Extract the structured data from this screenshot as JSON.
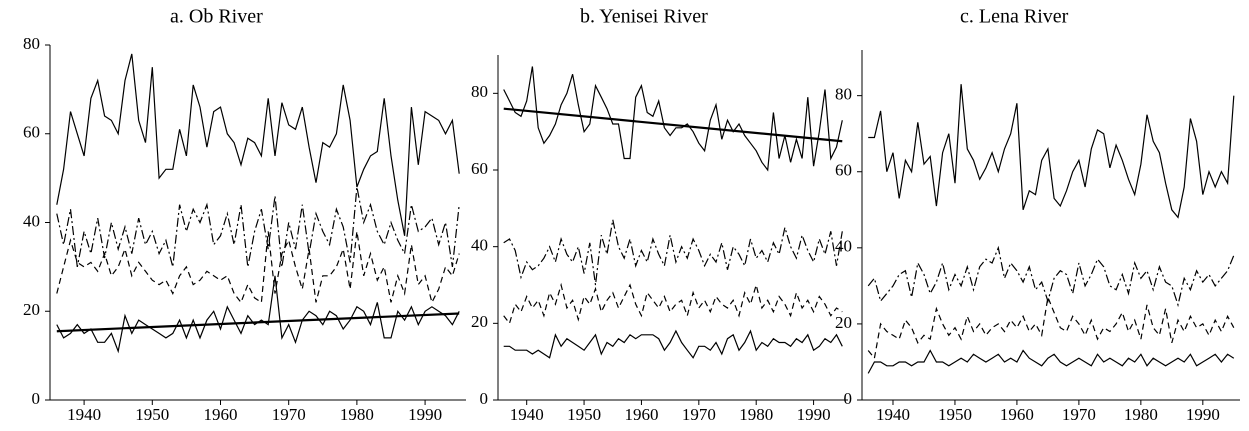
{
  "chart_data": [
    {
      "type": "line",
      "title": "a. Ob River",
      "x": [
        1936,
        1937,
        1938,
        1939,
        1940,
        1941,
        1942,
        1943,
        1944,
        1945,
        1946,
        1947,
        1948,
        1949,
        1950,
        1951,
        1952,
        1953,
        1954,
        1955,
        1956,
        1957,
        1958,
        1959,
        1960,
        1961,
        1962,
        1963,
        1964,
        1965,
        1966,
        1967,
        1968,
        1969,
        1970,
        1971,
        1972,
        1973,
        1974,
        1975,
        1976,
        1977,
        1978,
        1979,
        1980,
        1981,
        1982,
        1983,
        1984,
        1985,
        1986,
        1987,
        1988,
        1989,
        1990,
        1991,
        1992,
        1993,
        1994,
        1995
      ],
      "series": [
        {
          "style": "solid",
          "color": "#000",
          "values": [
            44,
            52,
            65,
            60,
            55,
            68,
            72,
            64,
            63,
            60,
            72,
            78,
            63,
            58,
            75,
            50,
            52,
            52,
            61,
            55,
            71,
            66,
            57,
            65,
            66,
            60,
            58,
            53,
            59,
            58,
            55,
            68,
            55,
            67,
            62,
            61,
            66,
            57,
            49,
            58,
            57,
            60,
            71,
            63,
            48,
            52,
            55,
            56,
            68,
            55,
            45,
            37,
            66,
            53,
            65,
            64,
            63,
            60,
            63,
            51
          ]
        },
        {
          "style": "dashdot",
          "color": "#000",
          "values": [
            42,
            35,
            43,
            30,
            38,
            33,
            41,
            32,
            40,
            34,
            39,
            33,
            41,
            35,
            38,
            33,
            36,
            30,
            44,
            38,
            43,
            40,
            44,
            35,
            37,
            42,
            35,
            44,
            30,
            38,
            43,
            34,
            46,
            30,
            40,
            34,
            44,
            33,
            42,
            38,
            35,
            43,
            39,
            31,
            48,
            40,
            44,
            38,
            35,
            40,
            36,
            33,
            44,
            38,
            39,
            41,
            35,
            40,
            30,
            44
          ]
        },
        {
          "style": "dashed",
          "color": "#000",
          "values": [
            24,
            30,
            36,
            31,
            30,
            31,
            29,
            33,
            28,
            30,
            34,
            28,
            31,
            29,
            27,
            26,
            27,
            24,
            28,
            30,
            26,
            27,
            29,
            28,
            27,
            28,
            24,
            22,
            26,
            23,
            22,
            38,
            24,
            33,
            36,
            30,
            25,
            34,
            22,
            28,
            28,
            30,
            34,
            25,
            38,
            28,
            33,
            27,
            30,
            22,
            28,
            24,
            35,
            26,
            28,
            22,
            25,
            30,
            28,
            33
          ]
        },
        {
          "style": "solid",
          "color": "#000",
          "values": [
            17,
            14,
            15,
            17,
            15,
            16,
            13,
            13,
            15,
            11,
            19,
            15,
            18,
            17,
            16,
            15,
            14,
            15,
            18,
            14,
            18,
            14,
            18,
            20,
            16,
            21,
            18,
            15,
            19,
            17,
            18,
            17,
            28,
            14,
            17,
            13,
            18,
            20,
            19,
            17,
            20,
            19,
            16,
            18,
            21,
            20,
            17,
            22,
            14,
            14,
            20,
            18,
            21,
            17,
            20,
            21,
            20,
            19,
            17,
            20
          ]
        }
      ],
      "trend": {
        "x": [
          1936,
          1995
        ],
        "values": [
          15.5,
          19.5
        ]
      },
      "xlim": [
        1935,
        1996
      ],
      "xticks": [
        1940,
        1950,
        1960,
        1970,
        1980,
        1990
      ],
      "ylim": [
        0,
        80
      ],
      "yticks": [
        0,
        20,
        40,
        60,
        80
      ]
    },
    {
      "type": "line",
      "title": "b. Yenisei River",
      "x": [
        1936,
        1937,
        1938,
        1939,
        1940,
        1941,
        1942,
        1943,
        1944,
        1945,
        1946,
        1947,
        1948,
        1949,
        1950,
        1951,
        1952,
        1953,
        1954,
        1955,
        1956,
        1957,
        1958,
        1959,
        1960,
        1961,
        1962,
        1963,
        1964,
        1965,
        1966,
        1967,
        1968,
        1969,
        1970,
        1971,
        1972,
        1973,
        1974,
        1975,
        1976,
        1977,
        1978,
        1979,
        1980,
        1981,
        1982,
        1983,
        1984,
        1985,
        1986,
        1987,
        1988,
        1989,
        1990,
        1991,
        1992,
        1993,
        1994,
        1995
      ],
      "series": [
        {
          "style": "solid",
          "color": "#000",
          "values": [
            81,
            78,
            75,
            74,
            78,
            87,
            71,
            67,
            69,
            72,
            77,
            80,
            85,
            77,
            70,
            72,
            82,
            79,
            76,
            72,
            72,
            63,
            63,
            79,
            82,
            75,
            74,
            78,
            71,
            69,
            71,
            71,
            72,
            70,
            67,
            65,
            73,
            77,
            68,
            73,
            70,
            72,
            69,
            67,
            65,
            62,
            60,
            75,
            63,
            69,
            62,
            68,
            63,
            79,
            61,
            70,
            81,
            63,
            66,
            73
          ]
        },
        {
          "style": "dashdot",
          "color": "#000",
          "values": [
            41,
            42,
            39,
            32,
            36,
            34,
            35,
            37,
            40,
            36,
            42,
            38,
            36,
            40,
            33,
            41,
            30,
            43,
            38,
            47,
            40,
            37,
            42,
            35,
            39,
            36,
            42,
            38,
            35,
            43,
            36,
            40,
            37,
            42,
            39,
            35,
            38,
            36,
            41,
            34,
            40,
            38,
            35,
            42,
            37,
            39,
            36,
            41,
            38,
            45,
            40,
            37,
            43,
            39,
            36,
            42,
            38,
            44,
            35,
            44
          ]
        },
        {
          "style": "dashed",
          "color": "#000",
          "values": [
            22,
            20,
            25,
            23,
            27,
            24,
            26,
            22,
            28,
            25,
            30,
            24,
            26,
            21,
            27,
            25,
            29,
            23,
            26,
            28,
            24,
            27,
            30,
            25,
            22,
            28,
            26,
            24,
            27,
            23,
            25,
            26,
            22,
            28,
            24,
            26,
            23,
            27,
            25,
            24,
            26,
            22,
            28,
            25,
            30,
            24,
            26,
            23,
            27,
            25,
            22,
            28,
            24,
            26,
            23,
            27,
            25,
            22,
            24,
            23
          ]
        },
        {
          "style": "solid",
          "color": "#000",
          "values": [
            14,
            14,
            13,
            13,
            13,
            12,
            13,
            12,
            11,
            17,
            14,
            16,
            15,
            14,
            13,
            15,
            17,
            12,
            15,
            14,
            16,
            15,
            17,
            16,
            17,
            17,
            17,
            16,
            13,
            15,
            18,
            15,
            13,
            11,
            14,
            14,
            13,
            15,
            12,
            16,
            17,
            13,
            15,
            18,
            13,
            15,
            14,
            16,
            15,
            15,
            14,
            16,
            15,
            17,
            13,
            14,
            16,
            15,
            17,
            14
          ]
        }
      ],
      "trend": {
        "x": [
          1936,
          1995
        ],
        "values": [
          76,
          67.5
        ]
      },
      "xlim": [
        1935,
        1996
      ],
      "xticks": [
        1940,
        1950,
        1960,
        1970,
        1980,
        1990
      ],
      "ylim": [
        0,
        90
      ],
      "yticks": [
        0,
        20,
        40,
        60,
        80
      ]
    },
    {
      "type": "line",
      "title": "c. Lena River",
      "x": [
        1936,
        1937,
        1938,
        1939,
        1940,
        1941,
        1942,
        1943,
        1944,
        1945,
        1946,
        1947,
        1948,
        1949,
        1950,
        1951,
        1952,
        1953,
        1954,
        1955,
        1956,
        1957,
        1958,
        1959,
        1960,
        1961,
        1962,
        1963,
        1964,
        1965,
        1966,
        1967,
        1968,
        1969,
        1970,
        1971,
        1972,
        1973,
        1974,
        1975,
        1976,
        1977,
        1978,
        1979,
        1980,
        1981,
        1982,
        1983,
        1984,
        1985,
        1986,
        1987,
        1988,
        1989,
        1990,
        1991,
        1992,
        1993,
        1994,
        1995
      ],
      "series": [
        {
          "style": "solid",
          "color": "#000",
          "values": [
            69,
            69,
            76,
            60,
            65,
            53,
            63,
            60,
            73,
            62,
            64,
            51,
            65,
            70,
            57,
            83,
            66,
            63,
            58,
            61,
            65,
            60,
            66,
            70,
            78,
            50,
            55,
            54,
            63,
            66,
            53,
            51,
            55,
            60,
            63,
            56,
            66,
            71,
            70,
            61,
            67,
            63,
            58,
            54,
            62,
            75,
            68,
            65,
            57,
            50,
            48,
            56,
            74,
            68,
            54,
            60,
            56,
            60,
            57,
            80
          ]
        },
        {
          "style": "dashdot",
          "color": "#000",
          "values": [
            30,
            32,
            26,
            28,
            30,
            33,
            34,
            27,
            36,
            33,
            28,
            31,
            36,
            29,
            33,
            30,
            35,
            29,
            35,
            37,
            36,
            40,
            32,
            36,
            34,
            31,
            35,
            29,
            31,
            26,
            32,
            34,
            33,
            28,
            36,
            30,
            33,
            37,
            35,
            30,
            29,
            33,
            28,
            36,
            32,
            34,
            29,
            35,
            31,
            30,
            25,
            32,
            29,
            34,
            31,
            33,
            30,
            32,
            34,
            38
          ]
        },
        {
          "style": "dashed",
          "color": "#000",
          "values": [
            13,
            11,
            20,
            18,
            17,
            16,
            21,
            19,
            15,
            17,
            16,
            24,
            20,
            17,
            19,
            16,
            22,
            18,
            20,
            17,
            19,
            20,
            18,
            21,
            19,
            22,
            18,
            20,
            17,
            27,
            23,
            19,
            18,
            22,
            20,
            17,
            21,
            16,
            19,
            18,
            20,
            23,
            18,
            21,
            16,
            25,
            19,
            17,
            24,
            15,
            21,
            18,
            22,
            19,
            20,
            17,
            21,
            18,
            22,
            19
          ]
        },
        {
          "style": "solid",
          "color": "#000",
          "values": [
            7,
            10,
            10,
            9,
            9,
            10,
            10,
            9,
            10,
            10,
            13,
            10,
            10,
            9,
            10,
            11,
            10,
            12,
            11,
            10,
            11,
            12,
            10,
            11,
            10,
            13,
            11,
            10,
            9,
            11,
            12,
            10,
            9,
            10,
            11,
            10,
            9,
            12,
            10,
            11,
            10,
            9,
            11,
            10,
            12,
            9,
            11,
            10,
            9,
            10,
            11,
            10,
            12,
            9,
            10,
            11,
            12,
            10,
            12,
            11
          ]
        }
      ],
      "xlim": [
        1935,
        1996
      ],
      "xticks": [
        1940,
        1950,
        1960,
        1970,
        1980,
        1990
      ],
      "ylim": [
        0,
        92
      ],
      "yticks": [
        0,
        20,
        40,
        60,
        80
      ]
    }
  ]
}
